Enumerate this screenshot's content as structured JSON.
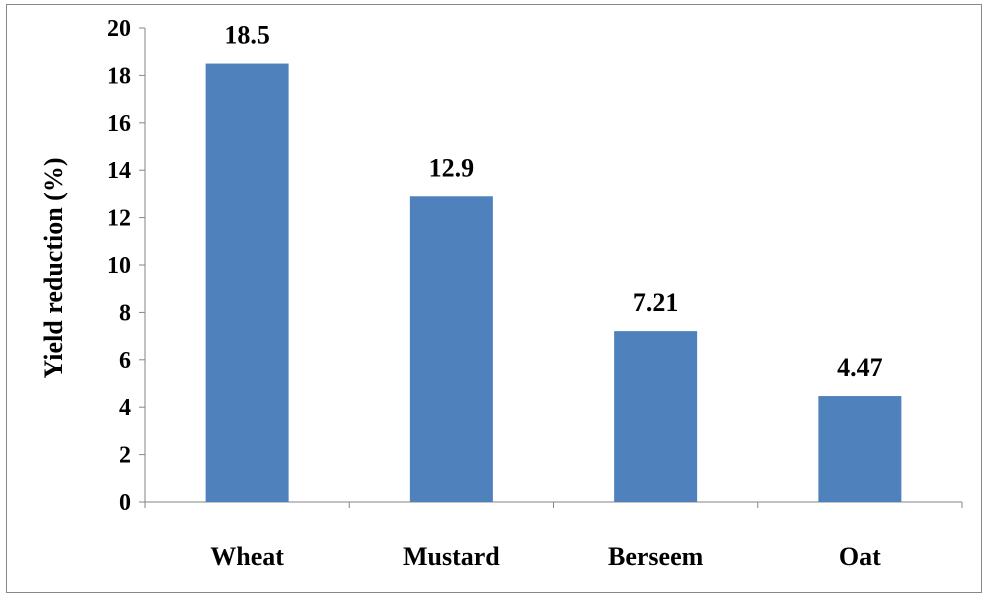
{
  "chart_data": {
    "type": "bar",
    "categories": [
      "Wheat",
      "Mustard",
      "Berseem",
      "Oat"
    ],
    "values": [
      18.5,
      12.9,
      7.21,
      4.47
    ],
    "data_labels": [
      "18.5",
      "12.9",
      "7.21",
      "4.47"
    ],
    "title": "",
    "xlabel": "",
    "ylabel": "Yield reduction (%)",
    "ylim": [
      0,
      20
    ],
    "yticks": [
      0,
      2,
      4,
      6,
      8,
      10,
      12,
      14,
      16,
      18,
      20
    ],
    "grid": false,
    "legend": "none",
    "bar_color": "#4F81BD"
  }
}
